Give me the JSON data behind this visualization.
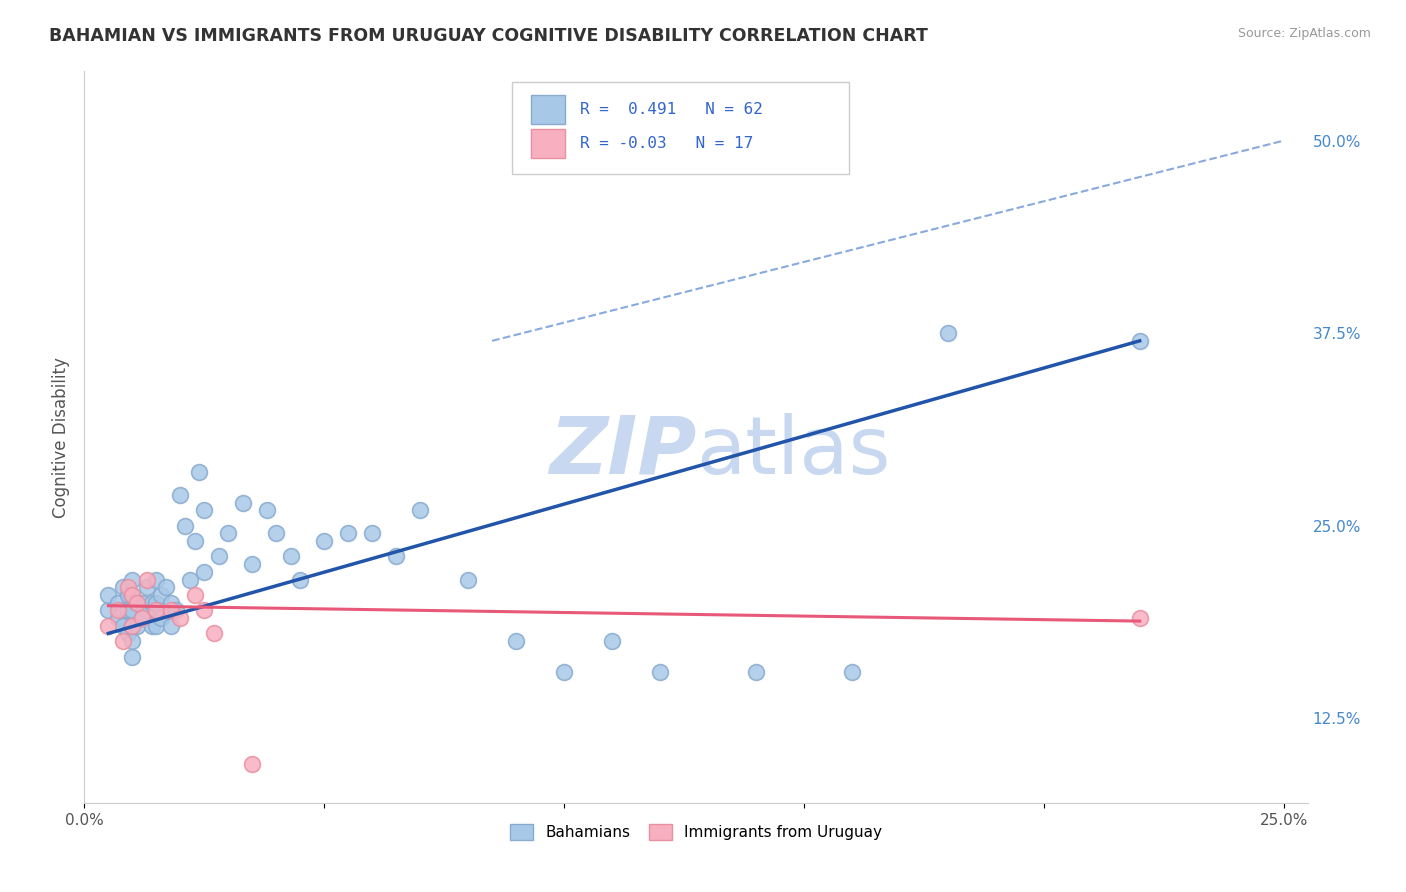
{
  "title": "BAHAMIAN VS IMMIGRANTS FROM URUGUAY COGNITIVE DISABILITY CORRELATION CHART",
  "source": "Source: ZipAtlas.com",
  "ylabel": "Cognitive Disability",
  "xlim": [
    0.0,
    0.255
  ],
  "ylim": [
    0.07,
    0.545
  ],
  "x_ticks": [
    0.0,
    0.05,
    0.1,
    0.15,
    0.2,
    0.25
  ],
  "x_tick_labels": [
    "0.0%",
    "",
    "",
    "",
    "",
    "25.0%"
  ],
  "y_ticks_right": [
    0.125,
    0.25,
    0.375,
    0.5
  ],
  "y_tick_labels_right": [
    "12.5%",
    "25.0%",
    "37.5%",
    "50.0%"
  ],
  "R_blue": 0.491,
  "N_blue": 62,
  "R_pink": -0.03,
  "N_pink": 17,
  "blue_color": "#A8C8E8",
  "blue_edge_color": "#88AACE",
  "blue_line_color": "#2255AA",
  "pink_color": "#F8B0C0",
  "pink_edge_color": "#E890A0",
  "pink_line_color": "#E85878",
  "dashed_line_color": "#88AADD",
  "grid_color": "#DDDDDD",
  "background_color": "#FFFFFF",
  "watermark_color": "#C8D8F0",
  "legend_label_blue": "Bahamians",
  "legend_label_pink": "Immigrants from Uruguay",
  "blue_x": [
    0.005,
    0.005,
    0.007,
    0.007,
    0.008,
    0.008,
    0.008,
    0.009,
    0.009,
    0.009,
    0.01,
    0.01,
    0.01,
    0.01,
    0.01,
    0.01,
    0.011,
    0.011,
    0.012,
    0.012,
    0.013,
    0.013,
    0.014,
    0.014,
    0.015,
    0.015,
    0.015,
    0.016,
    0.016,
    0.017,
    0.018,
    0.018,
    0.019,
    0.02,
    0.021,
    0.022,
    0.023,
    0.024,
    0.025,
    0.025,
    0.028,
    0.03,
    0.033,
    0.035,
    0.038,
    0.04,
    0.043,
    0.045,
    0.05,
    0.055,
    0.06,
    0.065,
    0.07,
    0.08,
    0.09,
    0.1,
    0.11,
    0.12,
    0.14,
    0.16,
    0.18,
    0.22
  ],
  "blue_y": [
    0.195,
    0.205,
    0.2,
    0.19,
    0.21,
    0.195,
    0.185,
    0.205,
    0.195,
    0.18,
    0.215,
    0.205,
    0.195,
    0.185,
    0.175,
    0.165,
    0.2,
    0.185,
    0.2,
    0.19,
    0.21,
    0.195,
    0.2,
    0.185,
    0.215,
    0.2,
    0.185,
    0.205,
    0.19,
    0.21,
    0.2,
    0.185,
    0.195,
    0.27,
    0.25,
    0.215,
    0.24,
    0.285,
    0.26,
    0.22,
    0.23,
    0.245,
    0.265,
    0.225,
    0.26,
    0.245,
    0.23,
    0.215,
    0.24,
    0.245,
    0.245,
    0.23,
    0.26,
    0.215,
    0.175,
    0.155,
    0.175,
    0.155,
    0.155,
    0.155,
    0.375,
    0.37
  ],
  "pink_x": [
    0.005,
    0.007,
    0.008,
    0.009,
    0.01,
    0.01,
    0.011,
    0.012,
    0.013,
    0.015,
    0.018,
    0.02,
    0.023,
    0.025,
    0.027,
    0.035,
    0.22
  ],
  "pink_y": [
    0.185,
    0.195,
    0.175,
    0.21,
    0.205,
    0.185,
    0.2,
    0.19,
    0.215,
    0.195,
    0.195,
    0.19,
    0.205,
    0.195,
    0.18,
    0.095,
    0.19
  ],
  "blue_line_x": [
    0.005,
    0.22
  ],
  "blue_line_y": [
    0.18,
    0.37
  ],
  "pink_line_x": [
    0.005,
    0.22
  ],
  "pink_line_y": [
    0.198,
    0.188
  ],
  "dashed_line_x": [
    0.085,
    0.25
  ],
  "dashed_line_y": [
    0.37,
    0.5
  ]
}
